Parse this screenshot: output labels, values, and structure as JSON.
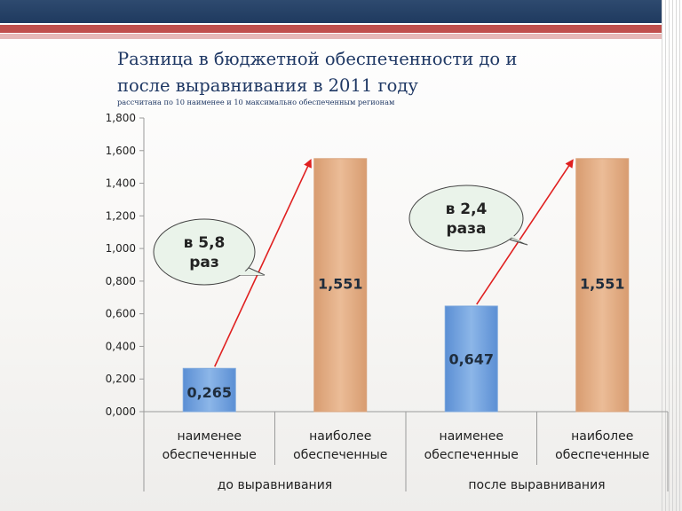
{
  "slide": {
    "title": "Разница в бюджетной обеспеченности до и после выравнивания в 2011 году",
    "subtitle": "рассчитана по 10 наименее и 10 максимально обеспеченным регионам",
    "colors": {
      "header_band": "#1f3a5f",
      "accent_band": "#c0504d",
      "bar_low": "#6fa0dc",
      "bar_high": "#e2ad84",
      "arrow": "#e02020",
      "callout_fill": "#eaf3ea"
    }
  },
  "chart_data": {
    "type": "bar",
    "categories": [
      {
        "label": "наименее обеспеченные",
        "group": "до выравнивания"
      },
      {
        "label": "наиболее обеспеченные",
        "group": "до выравнивания"
      },
      {
        "label": "наименее обеспеченные",
        "group": "после выравнивания"
      },
      {
        "label": "наиболее обеспеченные",
        "group": "после выравнивания"
      }
    ],
    "groups": [
      "до выравнивания",
      "после выравнивания"
    ],
    "values": [
      0.265,
      1.551,
      0.647,
      1.551
    ],
    "value_labels": [
      "0,265",
      "1,551",
      "0,647",
      "1,551"
    ],
    "ylim": [
      0,
      1.8
    ],
    "yticks": [
      "0,000",
      "0,200",
      "0,400",
      "0,600",
      "0,800",
      "1,000",
      "1,200",
      "1,400",
      "1,600",
      "1,800"
    ],
    "grid": false,
    "annotations": [
      {
        "text_lines": [
          "в 5,8",
          "раз"
        ],
        "group": "до выравнивания"
      },
      {
        "text_lines": [
          "в 2,4",
          "раза"
        ],
        "group": "после выравнивания"
      }
    ]
  }
}
